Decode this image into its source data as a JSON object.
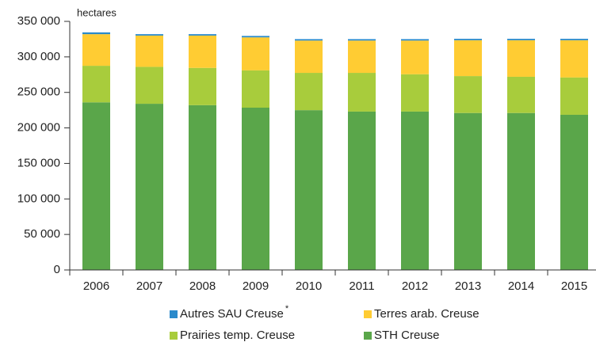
{
  "chart_data": {
    "type": "stacked_bar",
    "y_axis_label": "hectares",
    "categories": [
      "2006",
      "2007",
      "2008",
      "2009",
      "2010",
      "2011",
      "2012",
      "2013",
      "2014",
      "2015"
    ],
    "series": [
      {
        "name": "STH Creuse",
        "color": "#5aa64a",
        "values": [
          236000,
          234000,
          232000,
          228500,
          225000,
          223000,
          223000,
          221000,
          221000,
          218500
        ]
      },
      {
        "name": "Prairies temp. Creuse",
        "color": "#a8cc3c",
        "values": [
          51500,
          52000,
          52500,
          52500,
          52500,
          54500,
          52500,
          52000,
          51000,
          52500
        ]
      },
      {
        "name": "Terres arab. Creuse",
        "color": "#ffcc33",
        "values": [
          44500,
          44000,
          45500,
          46500,
          45500,
          45500,
          47500,
          50500,
          51500,
          52500
        ]
      },
      {
        "name": "Autres SAU Creuse",
        "color": "#2a8acb",
        "values": [
          2500,
          2000,
          2000,
          2000,
          2000,
          2000,
          2000,
          2000,
          2000,
          2000
        ]
      }
    ],
    "legend_footnote_marker": "*",
    "ylim": [
      0,
      350000
    ],
    "yticks": [
      0,
      {
        "value": 50000,
        "label": "50 000"
      },
      {
        "value": 100000,
        "label": "100 000"
      },
      {
        "value": 150000,
        "label": "150 000"
      },
      {
        "value": 200000,
        "label": "200 000"
      },
      {
        "value": 250000,
        "label": "250 000"
      },
      {
        "value": 300000,
        "label": "300 000"
      },
      {
        "value": 350000,
        "label": "350 000"
      }
    ],
    "grid": false
  }
}
